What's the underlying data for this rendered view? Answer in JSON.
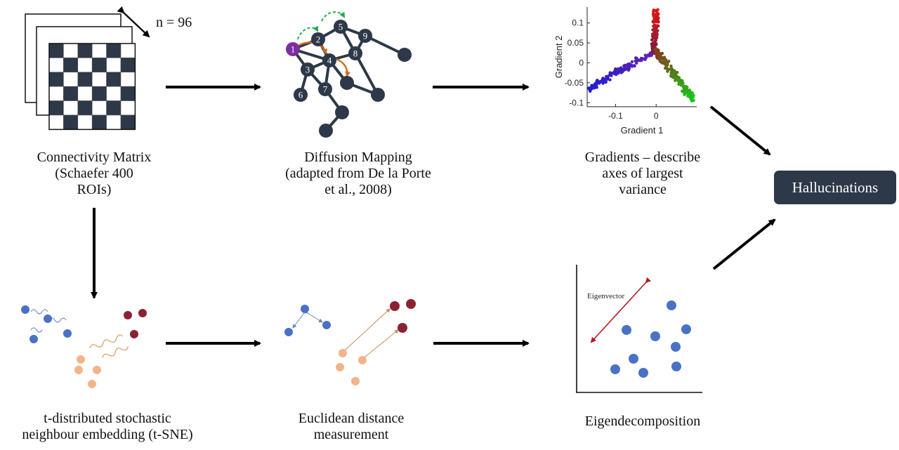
{
  "matrix_panel": {
    "n_label": "n = 96",
    "caption": [
      "Connectivity Matrix",
      "(Schaefer 400",
      "ROIs)"
    ]
  },
  "diffusion_panel": {
    "node_labels": [
      "1",
      "2",
      "3",
      "4",
      "5",
      "6",
      "7",
      "8",
      "9"
    ],
    "caption": [
      "Diffusion Mapping",
      "(adapted from De la Porte",
      "et al., 2008)"
    ]
  },
  "gradient_panel": {
    "caption": [
      "Gradients – describe",
      "axes of largest",
      "variance"
    ],
    "chart_data": {
      "type": "scatter",
      "xlabel": "Gradient 1",
      "ylabel": "Gradient 2",
      "xlim": [
        -0.17,
        0.1
      ],
      "ylim": [
        -0.11,
        0.14
      ],
      "xticks": [
        "-0.1",
        "0"
      ],
      "xtick_values": [
        -0.1,
        0
      ],
      "yticks": [
        "0.1",
        "0.05",
        "0",
        "-0.05",
        "-0.1"
      ],
      "ytick_values": [
        0.1,
        0.05,
        0,
        -0.05,
        -0.1
      ],
      "arms": [
        {
          "from": [
            -0.165,
            -0.065
          ],
          "to": [
            -0.005,
            0.03
          ],
          "count": 130,
          "colors": [
            "#1f1fd0",
            "#6a1fb0"
          ]
        },
        {
          "from": [
            -0.005,
            0.03
          ],
          "to": [
            0.0,
            0.13
          ],
          "count": 110,
          "colors": [
            "#7a1f3c",
            "#e01414"
          ]
        },
        {
          "from": [
            0.0,
            0.03
          ],
          "to": [
            0.09,
            -0.09
          ],
          "count": 160,
          "colors": [
            "#8a3a1a",
            "#18c81a"
          ]
        }
      ]
    }
  },
  "outcome": {
    "label": "Hallucinations"
  },
  "tsne_panel": {
    "caption": [
      "t-distributed stochastic",
      "neighbour embedding (t-SNE)"
    ]
  },
  "euclid_panel": {
    "caption": [
      "Euclidean distance",
      "measurement"
    ]
  },
  "eigen_panel": {
    "vector_label": "Eigenvector",
    "caption": [
      "Eigendecomposition"
    ]
  },
  "colors": {
    "node_dark": "#2d3848",
    "node_highlight": "#7b2fa0",
    "walk_green": "#1faa4a",
    "walk_orange": "#d46a1a",
    "point_blue": "#4a72c4",
    "point_red": "#8b2232",
    "point_peach": "#f2b48a",
    "eigen_red": "#b01e24"
  }
}
